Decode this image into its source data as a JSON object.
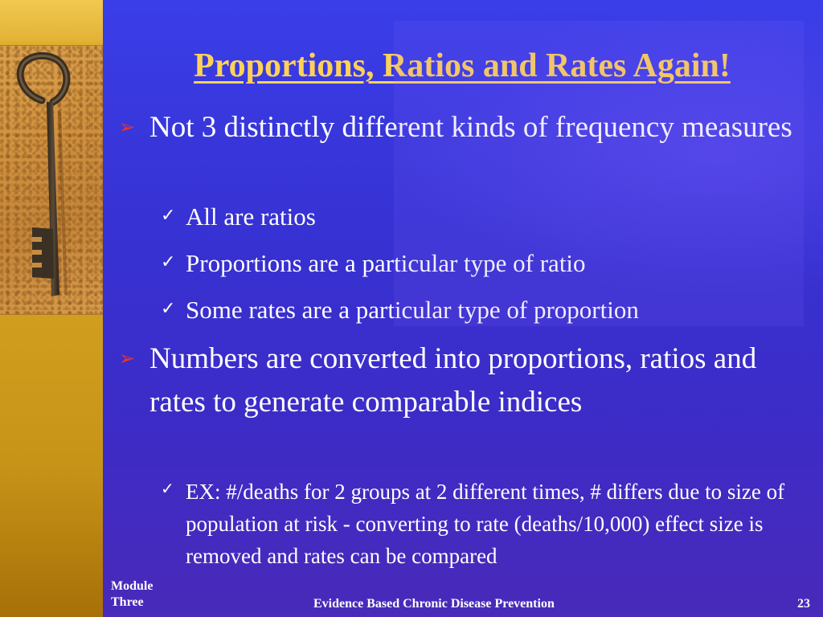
{
  "slide": {
    "title": "Proportions, Ratios and Rates Again!",
    "bullets": [
      {
        "text": "Not 3 distinctly different kinds of frequency measures",
        "children": [
          "All are ratios",
          "Proportions are a particular type of ratio",
          "Some rates are a particular type of proportion"
        ]
      },
      {
        "text": "Numbers are converted into proportions, ratios and rates to generate comparable indices",
        "children": [
          "EX: #/deaths for 2 groups at 2 different times, # differs due to size of population at risk - converting to rate (deaths/10,000) effect size is removed and rates can be compared"
        ]
      }
    ],
    "markers": {
      "level1": "➢",
      "level2": "✓"
    }
  },
  "footer": {
    "module_line1": "Module",
    "module_line2": "Three",
    "center": "Evidence Based Chronic Disease Prevention",
    "page_number": "23"
  },
  "colors": {
    "title": "#ffd257",
    "bullet_marker": "#ee3322",
    "text": "#ffffff",
    "background": "#3532d4",
    "sidebar": "#d4a020"
  },
  "icons": {
    "sidebar_image": "old-key-icon"
  }
}
